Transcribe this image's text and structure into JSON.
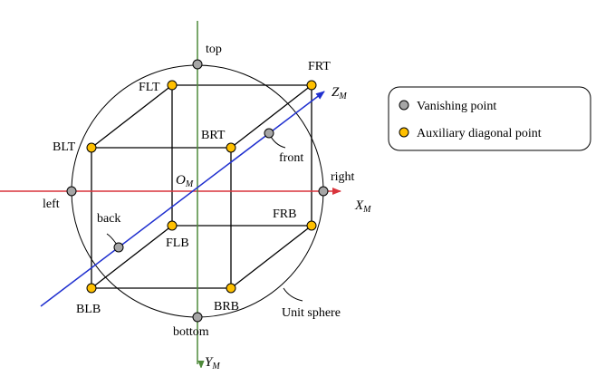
{
  "colors": {
    "vanishing_fill": "#a6a6a6",
    "auxiliary_fill": "#ffc000",
    "x_axis": "#d9343c",
    "y_axis": "#4e8a3a",
    "z_axis": "#1f2fcf",
    "edges": "#000000"
  },
  "axes": {
    "x_main": "X",
    "x_sub": "M",
    "y_main": "Y",
    "y_sub": "M",
    "z_main": "Z",
    "z_sub": "M",
    "origin_main": "O",
    "origin_sub": "M"
  },
  "vanishing_points": {
    "top": "top",
    "bottom": "bottom",
    "left": "left",
    "right": "right",
    "front": "front",
    "back": "back"
  },
  "auxiliary_points": {
    "FLT": "FLT",
    "FRT": "FRT",
    "BLT": "BLT",
    "BRT": "BRT",
    "FLB": "FLB",
    "FRB": "FRB",
    "BLB": "BLB",
    "BRB": "BRB"
  },
  "annotations": {
    "sphere": "Unit sphere"
  },
  "legend": {
    "vanishing": "Vanishing point",
    "auxiliary": "Auxiliary diagonal point"
  }
}
